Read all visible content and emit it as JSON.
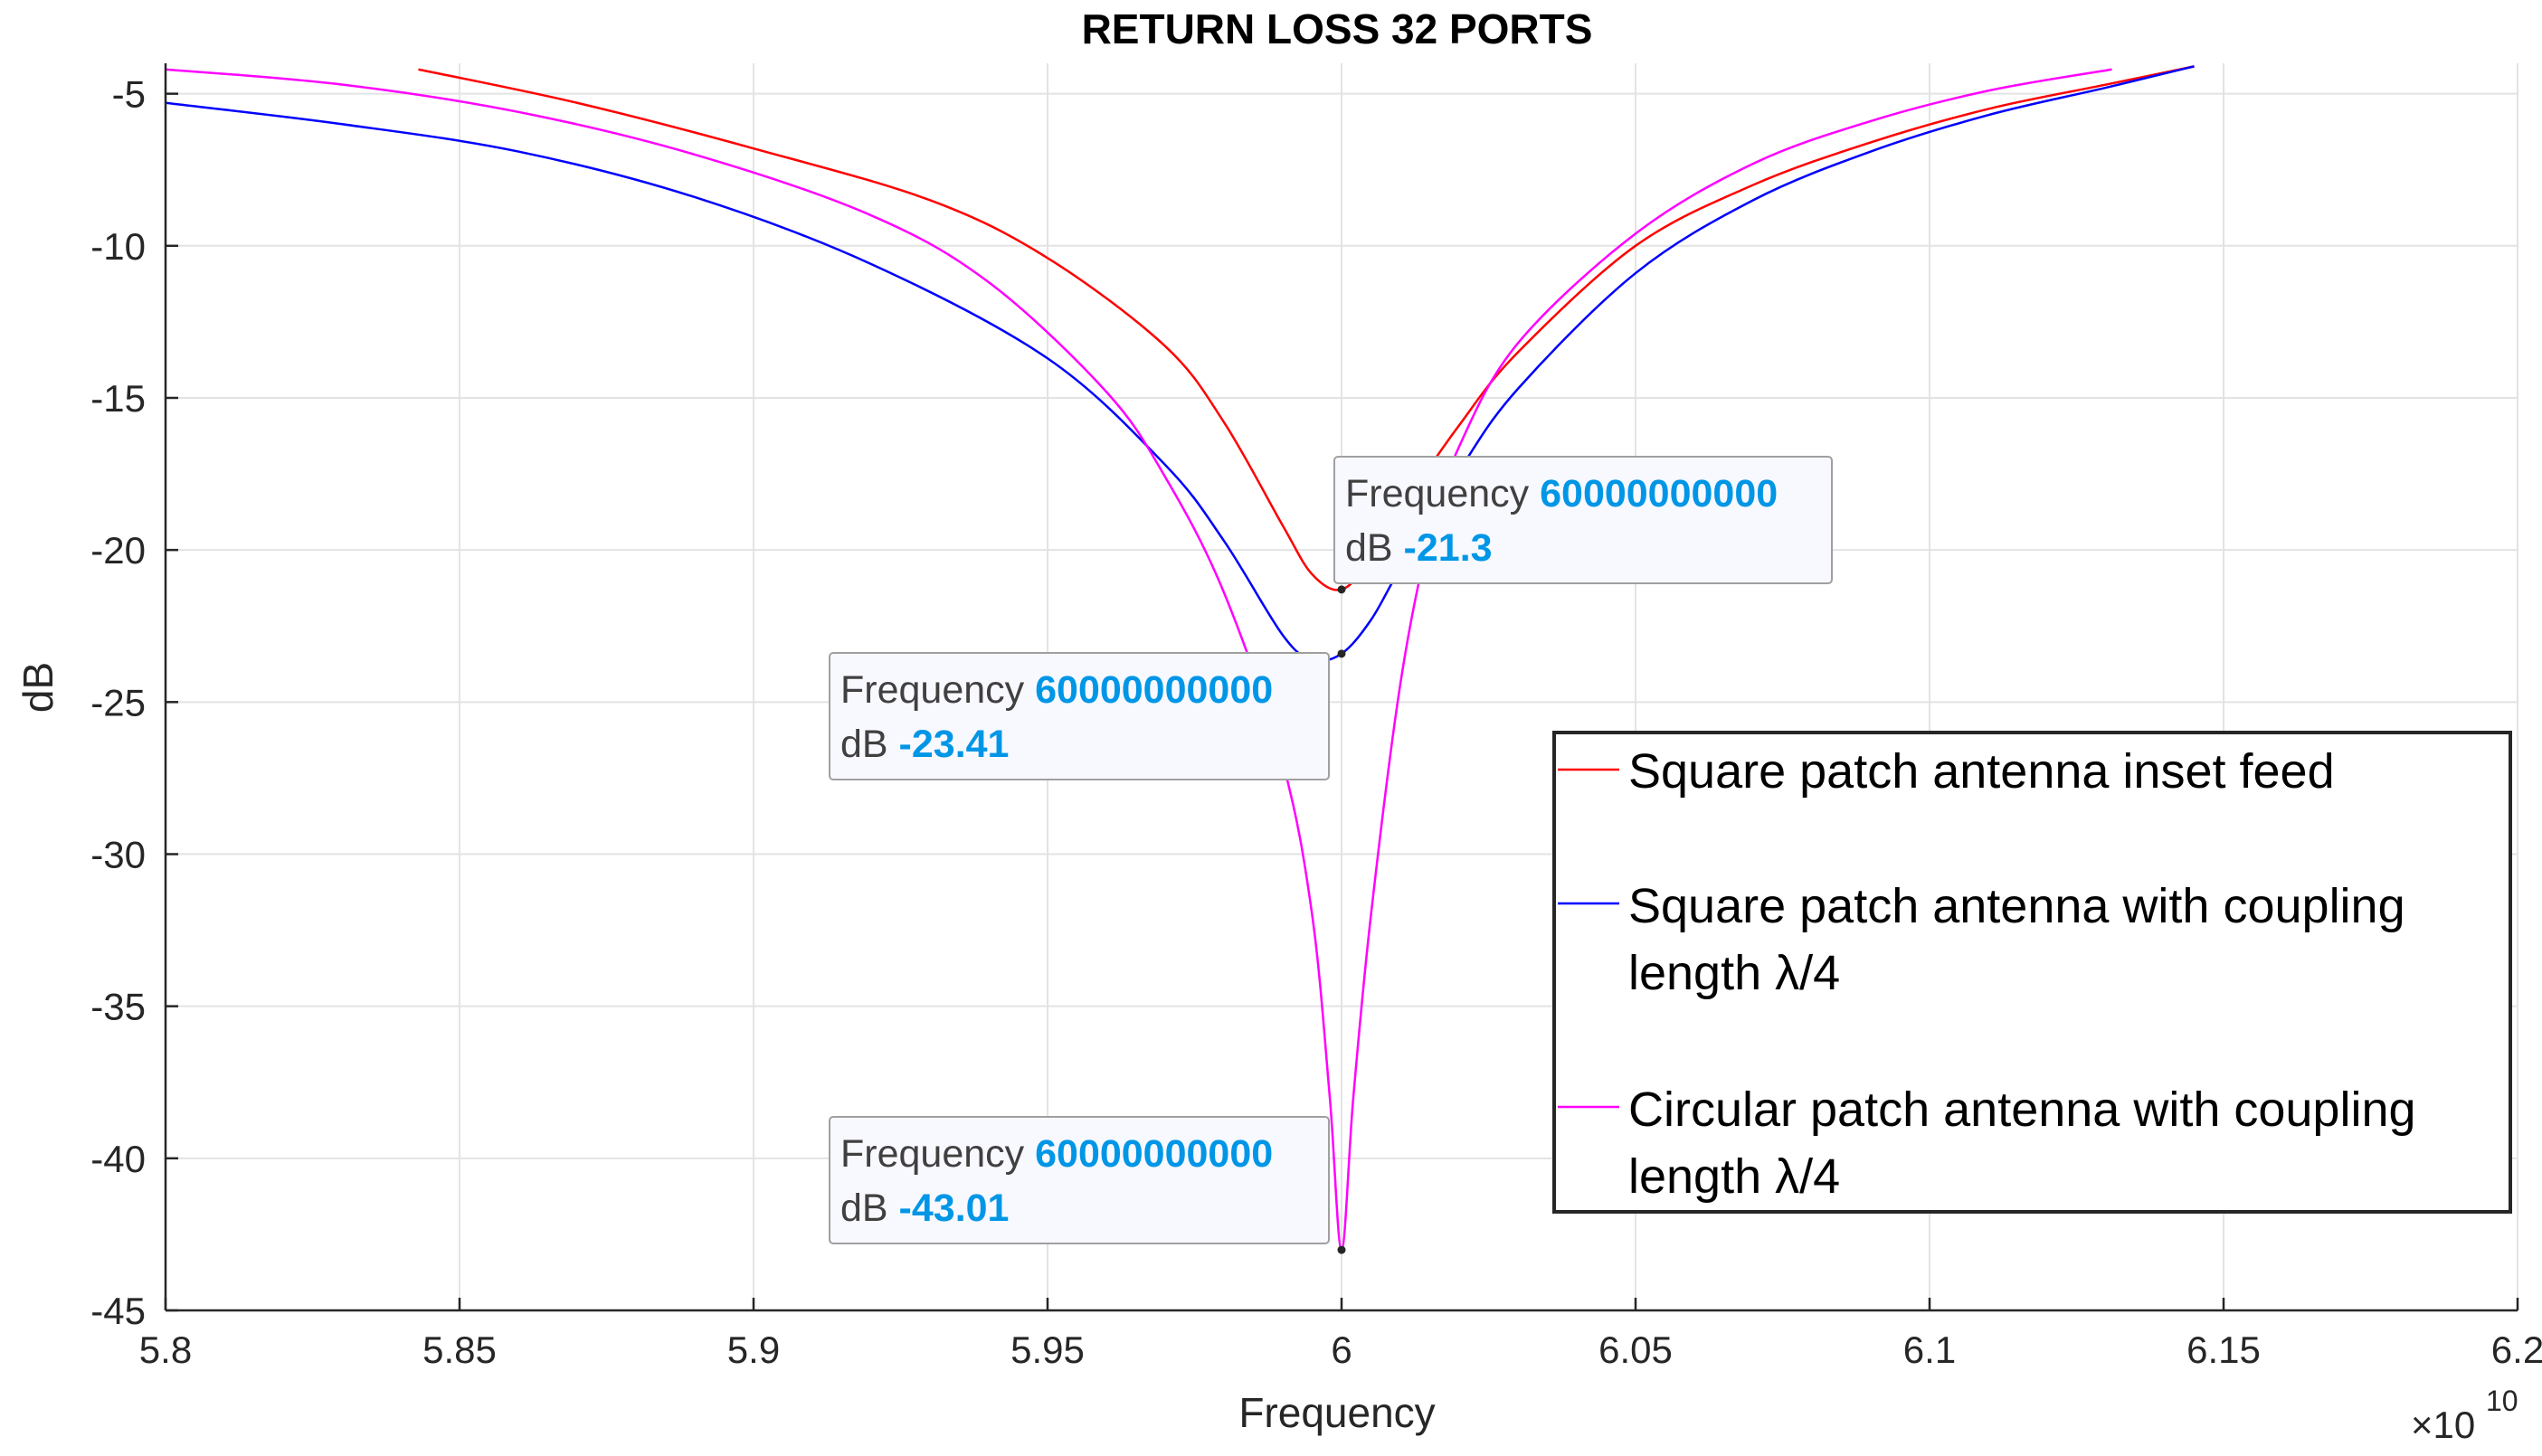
{
  "chart_data": {
    "type": "line",
    "title": "RETURN LOSS 32 PORTS",
    "xlabel": "Frequency",
    "ylabel": "dB",
    "x_exponent_label": "×10",
    "x_exponent_power": "10",
    "xlim": [
      5.8,
      6.2
    ],
    "ylim": [
      -45,
      -4
    ],
    "grid": true,
    "x_ticks": [
      {
        "value": 5.8,
        "label": "5.8"
      },
      {
        "value": 5.85,
        "label": "5.85"
      },
      {
        "value": 5.9,
        "label": "5.9"
      },
      {
        "value": 5.95,
        "label": "5.95"
      },
      {
        "value": 6.0,
        "label": "6"
      },
      {
        "value": 6.05,
        "label": "6.05"
      },
      {
        "value": 6.1,
        "label": "6.1"
      },
      {
        "value": 6.15,
        "label": "6.15"
      },
      {
        "value": 6.2,
        "label": "6.2"
      }
    ],
    "y_ticks": [
      {
        "value": -5,
        "label": "-5"
      },
      {
        "value": -10,
        "label": "-10"
      },
      {
        "value": -15,
        "label": "-15"
      },
      {
        "value": -20,
        "label": "-20"
      },
      {
        "value": -25,
        "label": "-25"
      },
      {
        "value": -30,
        "label": "-30"
      },
      {
        "value": -35,
        "label": "-35"
      },
      {
        "value": -40,
        "label": "-40"
      },
      {
        "value": -45,
        "label": "-45"
      }
    ],
    "legend_position": "lower-right",
    "series": [
      {
        "name": "Square patch antenna inset feed",
        "color": "#ff0000",
        "x": [
          5.843,
          5.87,
          5.9,
          5.93,
          5.95,
          5.97,
          5.98,
          5.99,
          5.995,
          6.0,
          6.005,
          6.01,
          6.02,
          6.03,
          6.05,
          6.07,
          6.09,
          6.11,
          6.13,
          6.145
        ],
        "y": [
          -4.2,
          -5.3,
          -6.8,
          -8.5,
          -10.4,
          -13.3,
          -15.8,
          -19.2,
          -20.8,
          -21.3,
          -20.3,
          -18.7,
          -15.9,
          -13.5,
          -10.0,
          -8.0,
          -6.6,
          -5.5,
          -4.7,
          -4.1
        ]
      },
      {
        "name": "Square patch antenna with coupling length λ/4",
        "color": "#0000ff",
        "x": [
          5.8,
          5.83,
          5.86,
          5.89,
          5.92,
          5.95,
          5.97,
          5.98,
          5.99,
          5.995,
          6.0,
          6.005,
          6.01,
          6.02,
          6.03,
          6.05,
          6.07,
          6.09,
          6.11,
          6.13,
          6.145
        ],
        "y": [
          -5.3,
          -6.0,
          -6.9,
          -8.4,
          -10.6,
          -13.7,
          -17.2,
          -19.7,
          -22.8,
          -23.6,
          -23.41,
          -22.3,
          -20.6,
          -17.4,
          -14.7,
          -10.9,
          -8.5,
          -6.9,
          -5.7,
          -4.8,
          -4.1
        ]
      },
      {
        "name": "Circular patch antenna with coupling length λ/4",
        "color": "#ff00ff",
        "x": [
          5.8,
          5.83,
          5.86,
          5.89,
          5.92,
          5.94,
          5.96,
          5.97,
          5.98,
          5.99,
          5.995,
          5.998,
          6.0,
          6.002,
          6.005,
          6.01,
          6.015,
          6.02,
          6.03,
          6.05,
          6.07,
          6.09,
          6.11,
          6.131
        ],
        "y": [
          -4.2,
          -4.7,
          -5.6,
          -7.0,
          -9.0,
          -11.2,
          -14.8,
          -17.6,
          -21.4,
          -27.0,
          -32.0,
          -38.0,
          -43.01,
          -38.0,
          -32.0,
          -24.4,
          -19.5,
          -16.6,
          -13.2,
          -9.6,
          -7.3,
          -5.9,
          -4.9,
          -4.2
        ]
      }
    ],
    "datatips": [
      {
        "key_x": "Frequency",
        "value_x": "60000000000",
        "key_y": "dB",
        "value_y": "-21.3",
        "x": 6.0,
        "y": -21.3
      },
      {
        "key_x": "Frequency",
        "value_x": "60000000000",
        "key_y": "dB",
        "value_y": "-23.41",
        "x": 6.0,
        "y": -23.41
      },
      {
        "key_x": "Frequency",
        "value_x": "60000000000",
        "key_y": "dB",
        "value_y": "-43.01",
        "x": 6.0,
        "y": -43.01
      }
    ]
  }
}
